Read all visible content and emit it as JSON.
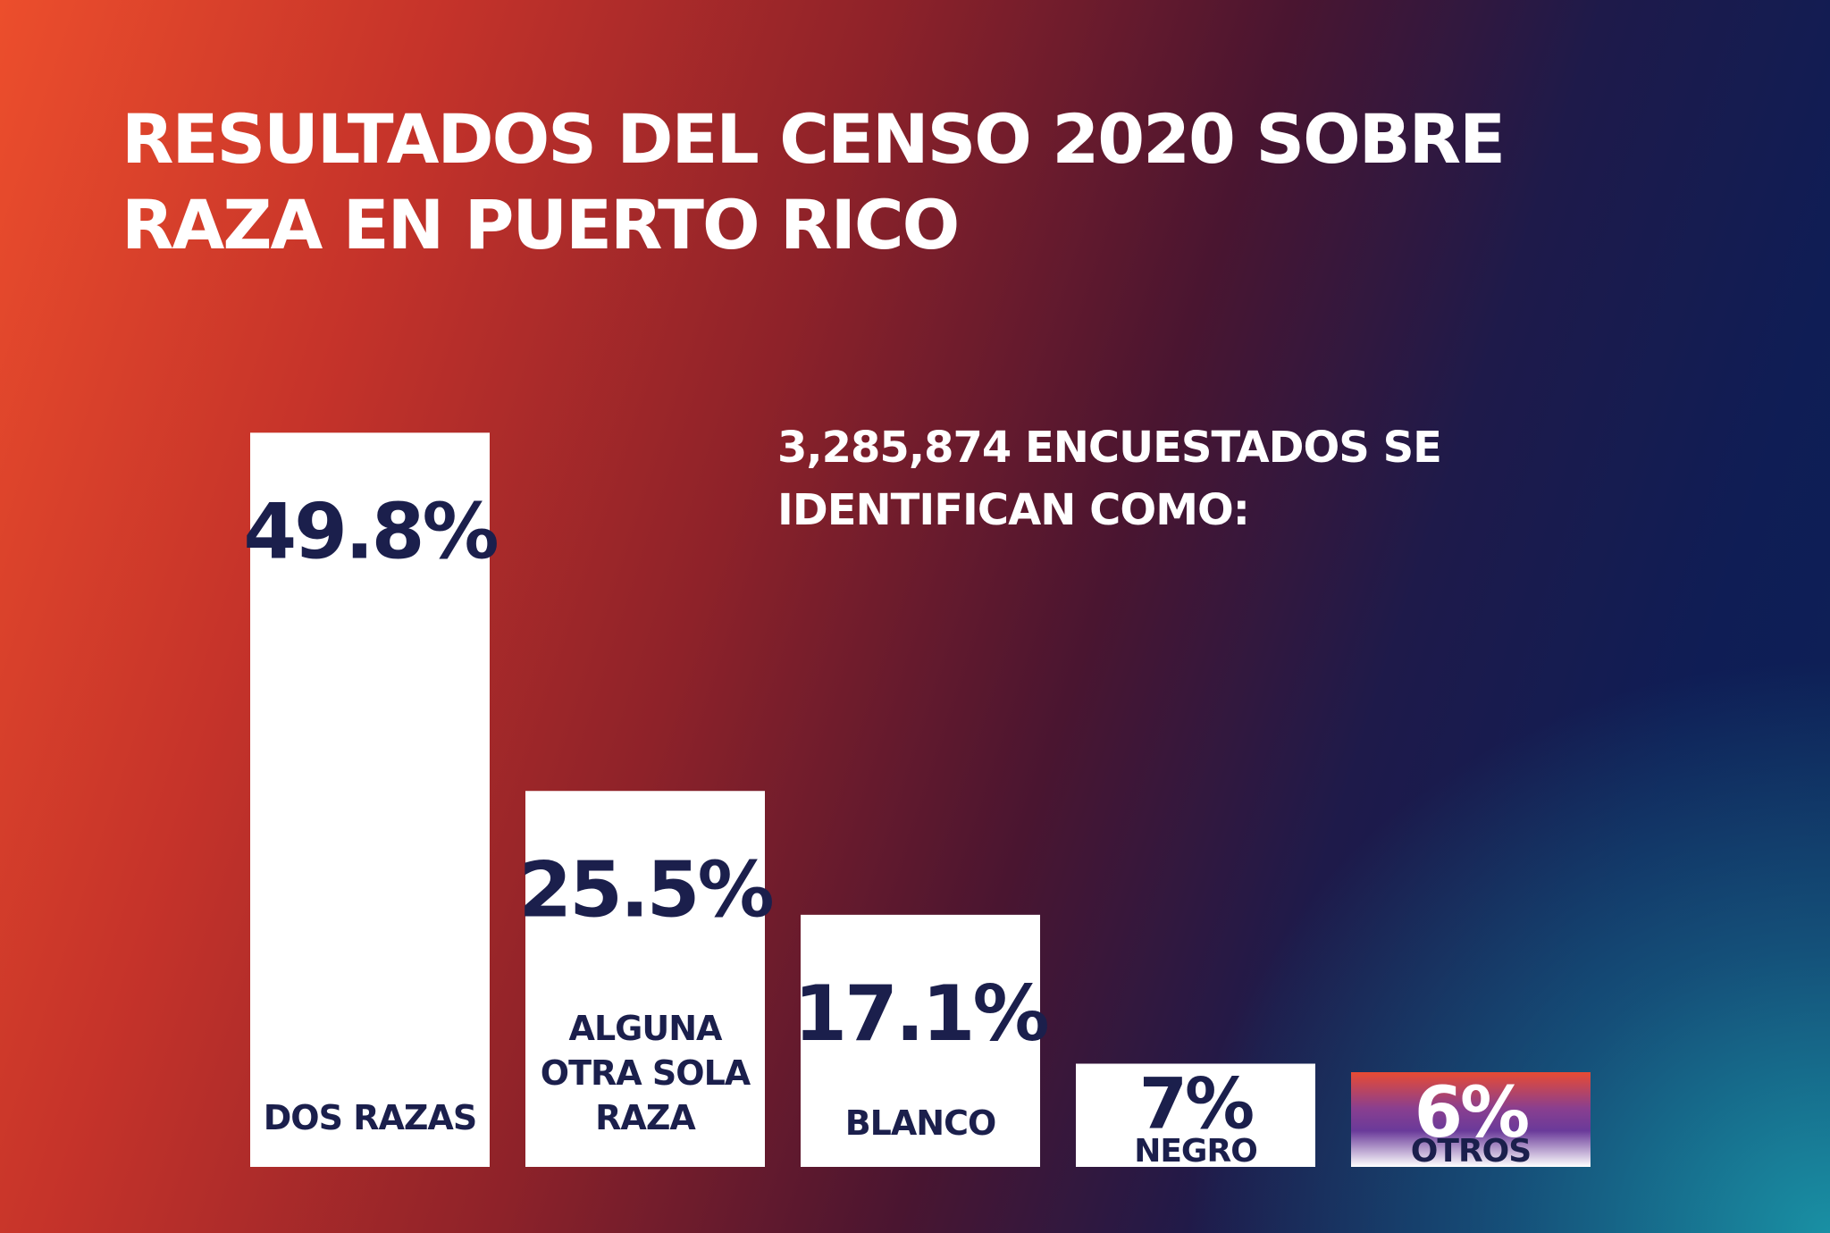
{
  "title": "RESULTADOS DEL CENSO 2020 SOBRE RAZA EN PUERTO RICO",
  "subtitle": "3,285,874 ENCUESTADOS SE IDENTIFICAN COMO:",
  "colors": {
    "bar": "#ffffff",
    "text_dark": "#1b1f4c",
    "otros_gradient": [
      "#e84b33",
      "#6a3a9a",
      "#ffffff"
    ]
  },
  "chart_data": {
    "type": "bar",
    "categories": [
      "DOS RAZAS",
      "ALGUNA OTRA SOLA RAZA",
      "BLANCO",
      "NEGRO",
      "OTROS"
    ],
    "category_lines": [
      [
        "DOS RAZAS"
      ],
      [
        "ALGUNA",
        "OTRA SOLA",
        "RAZA"
      ],
      [
        "BLANCO"
      ],
      [
        "NEGRO"
      ],
      [
        "OTROS"
      ]
    ],
    "values": [
      49.8,
      25.5,
      17.1,
      7,
      6
    ],
    "value_labels": [
      "49.8%",
      "25.5%",
      "17.1%",
      "7%",
      "6%"
    ],
    "unit": "%",
    "title": "RESULTADOS DEL CENSO 2020 SOBRE RAZA EN PUERTO RICO",
    "xlabel": "",
    "ylabel": "",
    "ylim": [
      0,
      50
    ],
    "grid": false,
    "legend": "none"
  }
}
